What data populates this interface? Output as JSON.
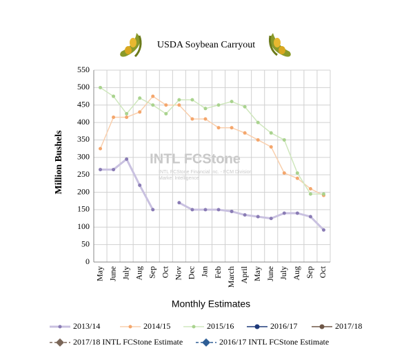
{
  "chart_data": {
    "type": "line",
    "title": "USDA Soybean Carryout",
    "ylabel": "Million Bushels",
    "xlabel": "Monthly Estimates",
    "watermark": "INTL FCStone",
    "watermark_sub": "INTL FCStone Financial Inc. - FCM Division",
    "watermark_sub2": "Market Intelligence",
    "categories": [
      "May",
      "June",
      "July",
      "Aug",
      "Sep",
      "Oct",
      "Nov",
      "Dec",
      "Jan",
      "Feb",
      "March",
      "April",
      "May",
      "June",
      "July",
      "Aug",
      "Sep",
      "Oct"
    ],
    "ylim": [
      0,
      550
    ],
    "yticks": [
      0,
      50,
      100,
      150,
      200,
      250,
      300,
      350,
      400,
      450,
      500,
      550
    ],
    "grid": true,
    "series": [
      {
        "name": "2013/14",
        "color": "#c9c1e0",
        "marker_color": "#8a7cb5",
        "values": [
          265,
          265,
          295,
          220,
          150,
          null,
          170,
          150,
          150,
          150,
          145,
          135,
          130,
          125,
          140,
          140,
          130,
          92
        ]
      },
      {
        "name": "2014/15",
        "color": "#f9cfad",
        "marker_color": "#f4a66c",
        "values": [
          325,
          415,
          415,
          430,
          475,
          450,
          450,
          410,
          410,
          385,
          385,
          370,
          350,
          330,
          255,
          240,
          210,
          191
        ]
      },
      {
        "name": "2015/16",
        "color": "#cfe7bd",
        "marker_color": "#a9d38e",
        "values": [
          500,
          475,
          425,
          470,
          450,
          425,
          465,
          465,
          440,
          450,
          460,
          445,
          400,
          370,
          350,
          255,
          195,
          195
        ]
      },
      {
        "name": "2016/17",
        "color": "#1f3a7a",
        "marker_color": "#1f3a7a",
        "values": [
          null,
          null,
          null,
          null,
          null,
          null,
          null,
          null,
          null,
          null,
          null,
          null,
          null,
          null,
          null,
          null,
          null,
          null
        ]
      },
      {
        "name": "2017/18",
        "color": "#6e5646",
        "marker_color": "#6e5646",
        "values": [
          null,
          null,
          null,
          null,
          null,
          null,
          null,
          null,
          null,
          null,
          null,
          null,
          null,
          null,
          null,
          null,
          null,
          null
        ]
      },
      {
        "name": "2017/18 INTL FCStone Estimate",
        "color": "#7a6658",
        "marker_color": "#7a6658",
        "dashed": true,
        "marker": "diamond",
        "values": [
          null,
          null,
          null,
          null,
          null,
          null,
          null,
          null,
          null,
          null,
          null,
          null,
          null,
          null,
          null,
          null,
          null,
          null
        ]
      },
      {
        "name": "2016/17 INTL FCStone Estimate",
        "color": "#2e5e96",
        "marker_color": "#2e5e96",
        "dashed": true,
        "marker": "diamond",
        "values": [
          null,
          null,
          null,
          null,
          null,
          null,
          null,
          null,
          null,
          null,
          null,
          null,
          null,
          null,
          null,
          null,
          null,
          null
        ]
      }
    ]
  }
}
